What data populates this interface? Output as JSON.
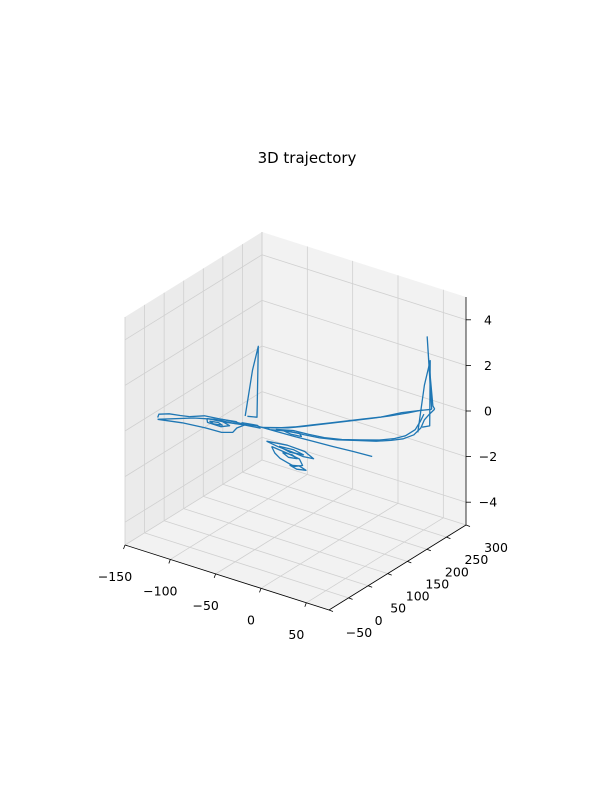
{
  "chart_data": {
    "type": "line",
    "projection": "3d",
    "title": "3D trajectory",
    "xlabel": "",
    "ylabel": "",
    "zlabel": "",
    "xlim": [
      -150,
      75
    ],
    "ylim": [
      -50,
      300
    ],
    "zlim": [
      -5,
      5
    ],
    "xticks": [
      -150,
      -100,
      -50,
      0,
      50
    ],
    "yticks": [
      -50,
      0,
      50,
      100,
      150,
      200,
      250,
      300
    ],
    "zticks": [
      -4,
      -2,
      0,
      2,
      4
    ],
    "grid": true,
    "colors": {
      "line": "#1f77b4",
      "pane": "#f2f2f2",
      "pane_dark": "#ebebeb",
      "grid": "#d0d0d0"
    },
    "series": [
      {
        "name": "",
        "segments": [
          [
            [
              -140,
              10,
              0
            ],
            [
              -115,
              45,
              0
            ],
            [
              -98,
              60,
              0
            ],
            [
              -90,
              62,
              0
            ],
            [
              -80,
              65,
              0
            ],
            [
              -70,
              70,
              0
            ],
            [
              -72,
              55,
              0
            ],
            [
              -70,
              40,
              0
            ],
            [
              -78,
              30,
              0
            ],
            [
              -95,
              28,
              0
            ],
            [
              -118,
              22,
              0
            ],
            [
              -140,
              10,
              0
            ]
          ],
          [
            [
              -120,
              45,
              0
            ],
            [
              -110,
              60,
              0
            ],
            [
              -80,
              70,
              0
            ],
            [
              -70,
              72,
              0
            ],
            [
              -60,
              78,
              0
            ],
            [
              -40,
              80,
              0
            ],
            [
              -20,
              82,
              0
            ],
            [
              0,
              85,
              0
            ],
            [
              20,
              88,
              0
            ],
            [
              40,
              92,
              0
            ],
            [
              60,
              95,
              0
            ]
          ],
          [
            [
              -105,
              55,
              0
            ],
            [
              -90,
              60,
              0
            ],
            [
              -80,
              55,
              0
            ],
            [
              -85,
              45,
              0
            ],
            [
              -100,
              45,
              0
            ],
            [
              -105,
              55,
              0
            ]
          ],
          [
            [
              -95,
              65,
              0
            ],
            [
              -80,
              72,
              0
            ],
            [
              -75,
              68,
              0
            ],
            [
              -88,
              60,
              0
            ],
            [
              -95,
              65,
              0
            ]
          ],
          [
            [
              -100,
              50,
              0
            ],
            [
              -92,
              54,
              0
            ],
            [
              -86,
              50,
              0
            ],
            [
              -94,
              46,
              0
            ],
            [
              -100,
              50,
              0
            ]
          ],
          [
            [
              -75,
              74,
              0
            ],
            [
              -60,
              80,
              0
            ],
            [
              -55,
              75,
              0
            ],
            [
              -70,
              70,
              0
            ]
          ],
          [
            [
              -35,
              45,
              0
            ],
            [
              -20,
              40,
              0
            ],
            [
              -5,
              38,
              0
            ],
            [
              10,
              35,
              0
            ],
            [
              20,
              38,
              0
            ],
            [
              5,
              50,
              0
            ],
            [
              -15,
              52,
              0
            ],
            [
              -35,
              45,
              0
            ]
          ],
          [
            [
              -25,
              35,
              0
            ],
            [
              -15,
              20,
              0
            ],
            [
              -5,
              10,
              0
            ],
            [
              5,
              5,
              0
            ],
            [
              15,
              0,
              0
            ],
            [
              20,
              10,
              0
            ],
            [
              10,
              25,
              0
            ],
            [
              -5,
              30,
              0
            ],
            [
              -25,
              35,
              0
            ]
          ],
          [
            [
              -20,
              42,
              0
            ],
            [
              -5,
              45,
              0
            ],
            [
              8,
              40,
              0
            ],
            [
              -5,
              35,
              0
            ],
            [
              -20,
              42,
              0
            ]
          ],
          [
            [
              -10,
              28,
              0
            ],
            [
              0,
              20,
              0
            ],
            [
              8,
              24,
              0
            ],
            [
              0,
              30,
              0
            ],
            [
              -10,
              28,
              0
            ]
          ],
          [
            [
              10,
              0,
              0
            ],
            [
              20,
              -5,
              0
            ],
            [
              28,
              0,
              0
            ],
            [
              18,
              6,
              0
            ],
            [
              10,
              0,
              0
            ]
          ],
          [
            [
              -55,
              78,
              0
            ],
            [
              -40,
              95,
              0
            ],
            [
              -30,
              110,
              0
            ],
            [
              -20,
              130,
              0
            ],
            [
              -10,
              150,
              0
            ],
            [
              0,
              170,
              0
            ],
            [
              10,
              190,
              0
            ],
            [
              20,
              210,
              0
            ],
            [
              30,
              240,
              0
            ],
            [
              40,
              260,
              0
            ],
            [
              48,
              275,
              0
            ]
          ],
          [
            [
              -50,
              82,
              0
            ],
            [
              -35,
              100,
              0
            ],
            [
              -25,
              118,
              0
            ],
            [
              -15,
              138,
              0
            ],
            [
              -5,
              158,
              0
            ],
            [
              5,
              178,
              0
            ],
            [
              15,
              198,
              0
            ],
            [
              25,
              220,
              0
            ],
            [
              35,
              245,
              0
            ],
            [
              42,
              265,
              0
            ]
          ],
          [
            [
              -45,
              80,
              0
            ],
            [
              -30,
              92,
              0
            ],
            [
              -15,
              95,
              0
            ],
            [
              0,
              100,
              0
            ],
            [
              15,
              110,
              0
            ],
            [
              30,
              125,
              0
            ],
            [
              45,
              140,
              0
            ],
            [
              55,
              155,
              0
            ],
            [
              62,
              170,
              0
            ],
            [
              65,
              190,
              0
            ],
            [
              62,
              215,
              0
            ],
            [
              55,
              240,
              0
            ],
            [
              52,
              260,
              0
            ],
            [
              50,
              278,
              0
            ]
          ],
          [
            [
              -42,
              85,
              0
            ],
            [
              -28,
              97,
              0
            ],
            [
              -12,
              100,
              0
            ],
            [
              3,
              105,
              0
            ],
            [
              18,
              115,
              0
            ],
            [
              32,
              130,
              0
            ],
            [
              46,
              146,
              0
            ],
            [
              55,
              162,
              0
            ],
            [
              60,
              180,
              0
            ],
            [
              60,
              205,
              0
            ],
            [
              54,
              232,
              0
            ],
            [
              48,
              255,
              0
            ]
          ],
          [
            [
              -35,
              88,
              0
            ],
            [
              -25,
              85,
              0
            ],
            [
              -15,
              88,
              0
            ],
            [
              -20,
              95,
              0
            ],
            [
              -35,
              88,
              0
            ]
          ],
          [
            [
              65,
              200,
              0
            ],
            [
              68,
              210,
              2
            ],
            [
              70,
              220,
              3
            ],
            [
              66,
              228,
              0
            ],
            [
              62,
              218,
              0
            ]
          ],
          [
            [
              -80,
              95,
              0
            ],
            [
              -75,
              102,
              2
            ],
            [
              -72,
              110,
              3
            ],
            [
              -70,
              102,
              0
            ],
            [
              -78,
              96,
              0
            ]
          ],
          [
            [
              50,
              278,
              0
            ],
            [
              45,
              285,
              0
            ],
            [
              38,
              290,
              2
            ],
            [
              40,
              282,
              3
            ],
            [
              48,
              275,
              0
            ]
          ],
          [
            [
              -142,
              15,
              0
            ],
            [
              -145,
              25,
              0
            ],
            [
              -138,
              35,
              0
            ],
            [
              -128,
              40,
              0
            ],
            [
              -120,
              45,
              0
            ]
          ]
        ]
      }
    ]
  }
}
